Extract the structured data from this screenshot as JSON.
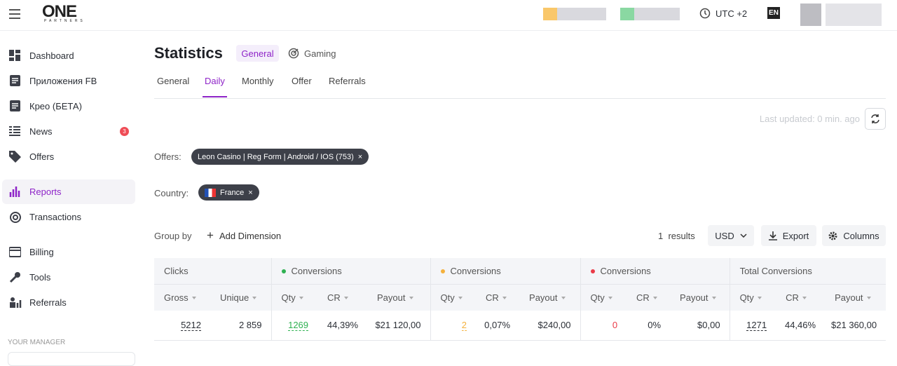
{
  "header": {
    "logo": "ONE",
    "logo_sub": "PARTNERS",
    "timezone": "UTC +2",
    "language": "EN"
  },
  "sidebar": {
    "items": [
      "Dashboard",
      "Приложения FB",
      "Крео (БЕТА)",
      "News",
      "Offers",
      "Reports",
      "Transactions",
      "Billing",
      "Tools",
      "Referrals"
    ],
    "news_badge": "3",
    "manager_heading": "YOUR MANAGER"
  },
  "page": {
    "title": "Statistics",
    "modes": [
      "General",
      "Gaming"
    ],
    "tabs": [
      "General",
      "Daily",
      "Monthly",
      "Offer",
      "Referrals"
    ],
    "last_updated": "Last updated: 0 min. ago",
    "filters": [
      {
        "label": "Offers:",
        "chip": "Leon Casino | Reg Form | Android / IOS (753)"
      },
      {
        "label": "Country:",
        "chip": "France"
      }
    ],
    "group_by": "Group by",
    "add_dimension": "Add Dimension",
    "results_count": "1",
    "results_label": "results",
    "currency": "USD",
    "export": "Export",
    "columns": "Columns"
  },
  "table": {
    "groups": [
      "Clicks",
      "Conversions",
      "Conversions",
      "Conversions",
      "Total Conversions"
    ],
    "columns": [
      "Gross",
      "Unique",
      "Qty",
      "CR",
      "Payout",
      "Qty",
      "CR",
      "Payout",
      "Qty",
      "CR",
      "Payout",
      "Qty",
      "CR",
      "Payout"
    ],
    "rows": [
      [
        "5212",
        "2 859",
        "1269",
        "44,39%",
        "$21 120,00",
        "2",
        "0,07%",
        "$240,00",
        "0",
        "0%",
        "$0,00",
        "1271",
        "44,46%",
        "$21 360,00"
      ]
    ]
  }
}
